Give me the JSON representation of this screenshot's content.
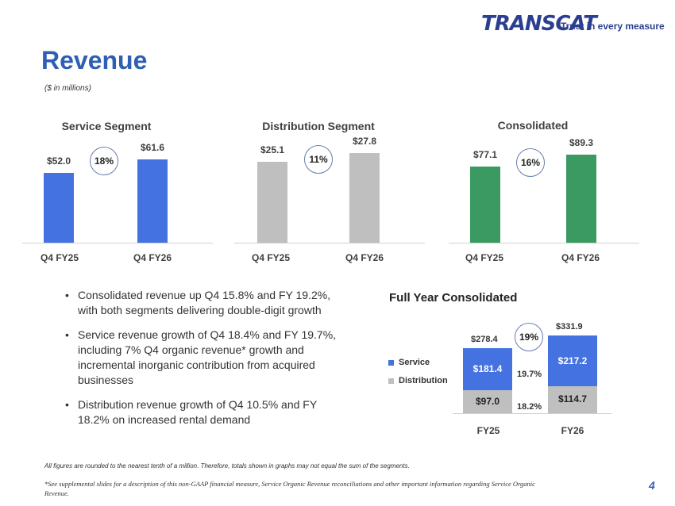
{
  "header": {
    "logo_text": "TRANSCAT",
    "tagline": "Trust in every measure",
    "title": "Revenue",
    "subtitle": "($ in millions)"
  },
  "colors": {
    "service": "#4472e0",
    "distribution": "#bfbfbf",
    "consolidated": "#3a9a62",
    "title_blue": "#2e5fb3"
  },
  "chart_data": [
    {
      "type": "bar",
      "title": "Service Segment",
      "categories": [
        "Q4 FY25",
        "Q4 FY26"
      ],
      "values": [
        52.0,
        61.6
      ],
      "labels": [
        "$52.0",
        "$61.6"
      ],
      "growth": "18%"
    },
    {
      "type": "bar",
      "title": "Distribution Segment",
      "categories": [
        "Q4 FY25",
        "Q4 FY26"
      ],
      "values": [
        25.1,
        27.8
      ],
      "labels": [
        "$25.1",
        "$27.8"
      ],
      "growth": "11%"
    },
    {
      "type": "bar",
      "title": "Consolidated",
      "categories": [
        "Q4 FY25",
        "Q4 FY26"
      ],
      "values": [
        77.1,
        89.3
      ],
      "labels": [
        "$77.1",
        "$89.3"
      ],
      "growth": "16%"
    },
    {
      "type": "bar",
      "stacked": true,
      "title": "Full Year Consolidated",
      "categories": [
        "FY25",
        "FY26"
      ],
      "series": [
        {
          "name": "Distribution",
          "values": [
            97.0,
            114.7
          ],
          "labels": [
            "$97.0",
            "$114.7"
          ]
        },
        {
          "name": "Service",
          "values": [
            181.4,
            217.2
          ],
          "labels": [
            "$181.4",
            "$217.2"
          ]
        }
      ],
      "totals": [
        "$278.4",
        "$331.9"
      ],
      "growth": "19%",
      "service_growth": "19.7%",
      "distribution_growth": "18.2%",
      "legend": [
        "Service",
        "Distribution"
      ]
    }
  ],
  "bullets": [
    "Consolidated revenue up Q4 15.8% and FY 19.2%, with both segments delivering double-digit growth",
    "Service revenue growth of Q4 18.4% and FY 19.7%, including 7% Q4 organic revenue* growth and incremental inorganic contribution from acquired businesses",
    "Distribution revenue growth of Q4 10.5% and FY 18.2% on increased rental demand"
  ],
  "footer": {
    "note1": "All figures are rounded to the nearest tenth of a million. Therefore, totals shown in graphs may not equal the sum of the segments.",
    "note2": "*See supplemental slides for a description of this non-GAAP financial measure, Service Organic Revenue reconciliations and other important information regarding Service Organic Revenue.",
    "page": "4"
  }
}
